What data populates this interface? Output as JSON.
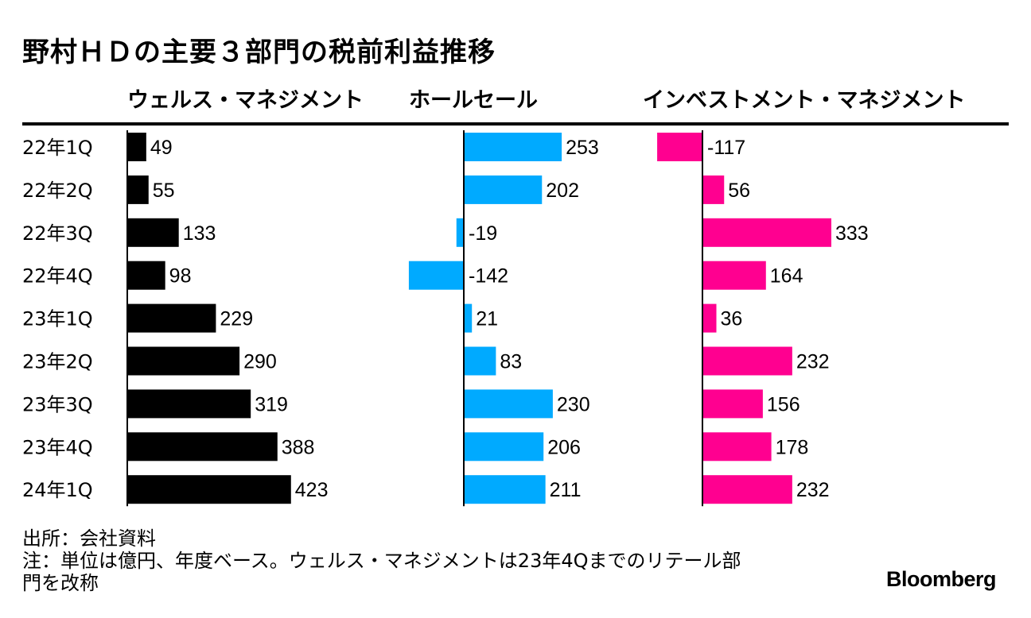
{
  "chart_data": {
    "type": "bar",
    "title": "野村ＨＤの主要３部門の税前利益推移",
    "categories": [
      "22年1Q",
      "22年2Q",
      "22年3Q",
      "22年4Q",
      "23年1Q",
      "23年2Q",
      "23年3Q",
      "23年4Q",
      "24年1Q"
    ],
    "series": [
      {
        "name": "ウェルス・マネジメント",
        "color": "#000000",
        "values": [
          49,
          55,
          133,
          98,
          229,
          290,
          319,
          388,
          423
        ]
      },
      {
        "name": "ホールセール",
        "color": "#00aaff",
        "values": [
          253,
          202,
          -19,
          -142,
          21,
          83,
          230,
          206,
          211
        ]
      },
      {
        "name": "インベストメント・マネジメント",
        "color": "#ff0090",
        "values": [
          -117,
          56,
          333,
          164,
          36,
          232,
          156,
          178,
          232
        ]
      }
    ],
    "xlabel": "",
    "ylabel": ""
  },
  "notes": {
    "source": "出所：会社資料",
    "note_line1": "注：単位は億円、年度ベース。ウェルス・マネジメントは23年4Qまでのリテール部",
    "note_line2": "門を改称"
  },
  "brand": "Bloomberg"
}
